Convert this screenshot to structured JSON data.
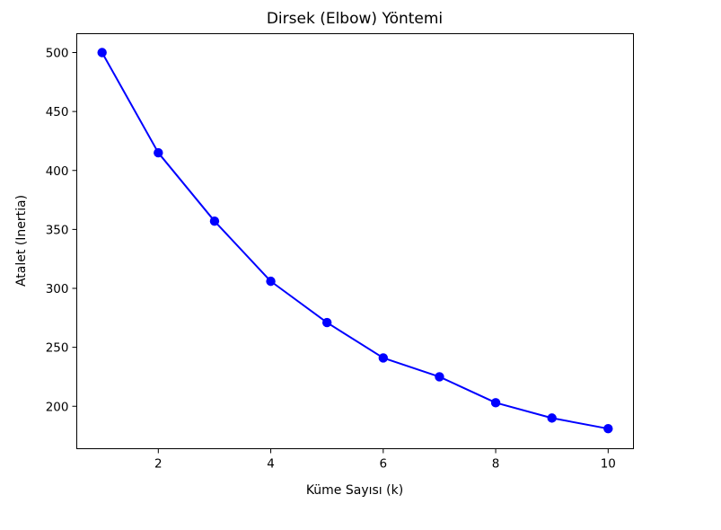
{
  "chart_data": {
    "type": "line",
    "title": "Dirsek (Elbow) Yöntemi",
    "xlabel": "Küme Sayısı (k)",
    "ylabel": "Atalet (Inertia)",
    "xlim": [
      0.55,
      10.45
    ],
    "ylim": [
      164,
      516
    ],
    "xticks": [
      2,
      4,
      6,
      8,
      10
    ],
    "yticks": [
      200,
      250,
      300,
      350,
      400,
      450,
      500
    ],
    "xtick_labels": [
      "2",
      "4",
      "6",
      "8",
      "10"
    ],
    "ytick_labels": [
      "200",
      "250",
      "300",
      "350",
      "400",
      "450",
      "500"
    ],
    "grid": false,
    "legend": false,
    "series": [
      {
        "color": "#0000ff",
        "marker": "circle",
        "x": [
          1,
          2,
          3,
          4,
          5,
          6,
          7,
          8,
          9,
          10
        ],
        "y": [
          500,
          415,
          357,
          306,
          271,
          241,
          225,
          203,
          190,
          181
        ]
      }
    ]
  }
}
